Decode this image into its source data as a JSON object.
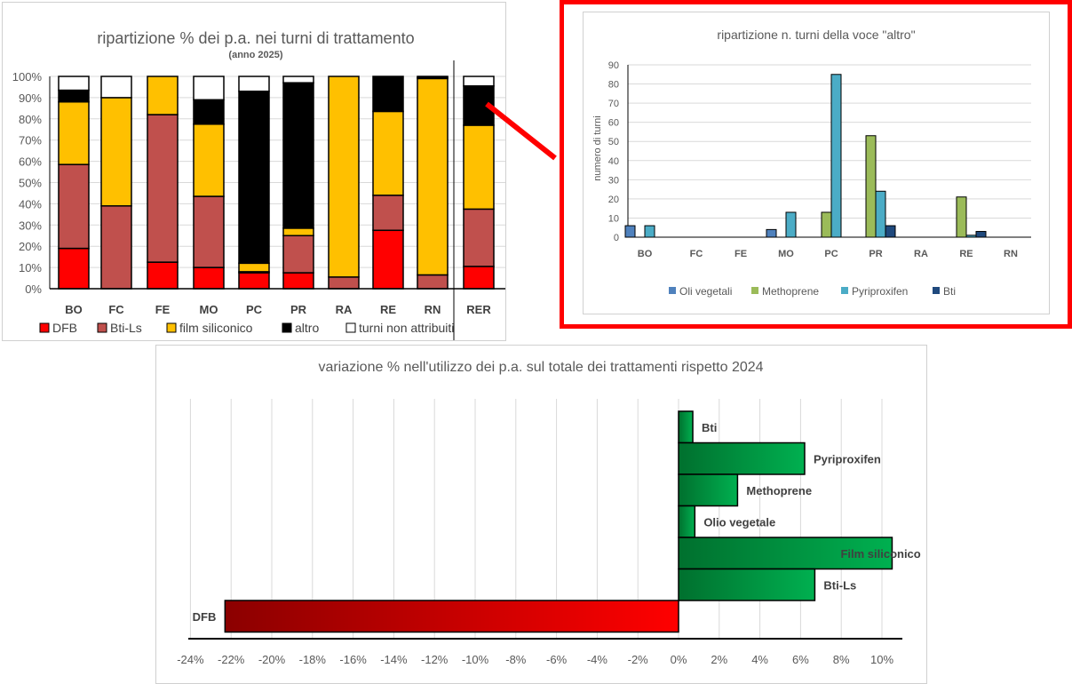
{
  "chart_data": [
    {
      "type": "bar",
      "stacked": true,
      "title": "ripartizione % dei p.a. nei turni di trattamento",
      "subtitle": "(anno 2025)",
      "categories": [
        "BO",
        "FC",
        "FE",
        "MO",
        "PC",
        "PR",
        "RA",
        "RE",
        "RN",
        "RER"
      ],
      "yticks": [
        "0%",
        "10%",
        "20%",
        "30%",
        "40%",
        "50%",
        "60%",
        "70%",
        "80%",
        "90%",
        "100%"
      ],
      "ylim": [
        0,
        100
      ],
      "series": [
        {
          "name": "DFB",
          "color": "#ff0000",
          "values": [
            19,
            0,
            12.5,
            10,
            7.5,
            7.5,
            0,
            27.5,
            0,
            10.5
          ]
        },
        {
          "name": "Bti-Ls",
          "color": "#c0504d",
          "values": [
            39.5,
            39,
            69.5,
            33.5,
            0.5,
            17.5,
            5.5,
            16.5,
            6.5,
            27
          ]
        },
        {
          "name": "film siliconico",
          "color": "#ffc000",
          "values": [
            29.5,
            51,
            18,
            34,
            4,
            3.5,
            94.5,
            39.5,
            92.5,
            39.5
          ]
        },
        {
          "name": "altro",
          "color": "#000000",
          "values": [
            5.5,
            0,
            0,
            11.5,
            81,
            68.5,
            0,
            16.5,
            0.5,
            18.5
          ]
        },
        {
          "name": "turni non attribuiti",
          "color": "#ffffff",
          "values": [
            6.5,
            10,
            0,
            11,
            7,
            3,
            0,
            0,
            0.5,
            4.5
          ]
        }
      ],
      "legend": "bottom"
    },
    {
      "type": "bar",
      "title": "ripartizione n. turni della  voce \"altro\"",
      "ylabel": "numero di turni",
      "categories": [
        "BO",
        "FC",
        "FE",
        "MO",
        "PC",
        "PR",
        "RA",
        "RE",
        "RN"
      ],
      "yticks": [
        "0",
        "10",
        "20",
        "30",
        "40",
        "50",
        "60",
        "70",
        "80",
        "90"
      ],
      "ylim": [
        0,
        90
      ],
      "series": [
        {
          "name": "Oli vegetali",
          "color": "#4f81bd",
          "values": [
            6,
            0,
            0,
            4,
            0,
            0,
            0,
            0,
            0
          ]
        },
        {
          "name": "Methoprene",
          "color": "#9bbb59",
          "values": [
            0,
            0,
            0,
            0,
            13,
            53,
            0,
            21,
            0
          ]
        },
        {
          "name": "Pyriproxifen",
          "color": "#4bacc6",
          "values": [
            6,
            0,
            0,
            13,
            85,
            24,
            0,
            1,
            0
          ]
        },
        {
          "name": "Bti",
          "color": "#1f497d",
          "values": [
            0,
            0,
            0,
            0,
            0,
            6,
            0,
            3,
            0
          ]
        }
      ],
      "legend": "bottom"
    },
    {
      "type": "bar",
      "orientation": "horizontal",
      "title": "variazione % nell'utilizzo dei p.a. sul totale dei trattamenti rispetto 2024",
      "categories": [
        "Bti",
        "Pyriproxifen",
        "Methoprene",
        "Olio vegetale",
        "Film siliconico",
        "Bti-Ls",
        "DFB"
      ],
      "values": [
        0.7,
        6.2,
        2.9,
        0.8,
        10.5,
        6.7,
        -22.3
      ],
      "xticks": [
        "-24%",
        "-22%",
        "-20%",
        "-18%",
        "-16%",
        "-14%",
        "-12%",
        "-10%",
        "-8%",
        "-6%",
        "-4%",
        "-2%",
        "0%",
        "2%",
        "4%",
        "6%",
        "8%",
        "10%"
      ],
      "xlim": [
        -24,
        11
      ],
      "positive_color": "#00b050",
      "negative_color": "#ff0000"
    }
  ]
}
